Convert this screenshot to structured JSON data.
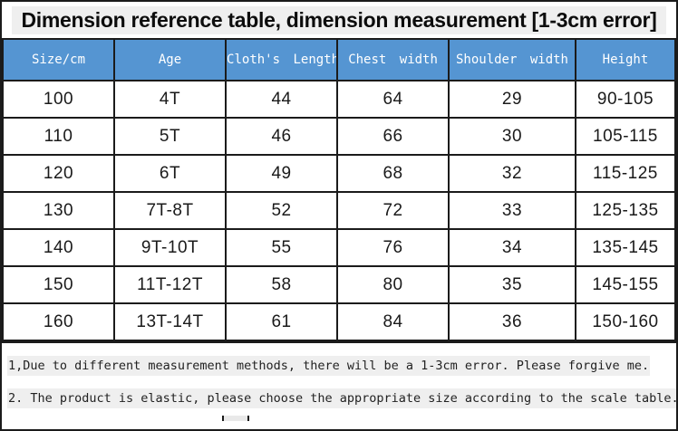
{
  "title": "Dimension reference table, dimension measurement [1-3cm error]",
  "table": {
    "columns": [
      "Size/cm",
      "Age",
      "Cloth's Length",
      "Chest width",
      "Shoulder width",
      "Height"
    ],
    "rows": [
      [
        "100",
        "4T",
        "44",
        "64",
        "29",
        "90-105"
      ],
      [
        "110",
        "5T",
        "46",
        "66",
        "30",
        "105-115"
      ],
      [
        "120",
        "6T",
        "49",
        "68",
        "32",
        "115-125"
      ],
      [
        "130",
        "7T-8T",
        "52",
        "72",
        "33",
        "125-135"
      ],
      [
        "140",
        "9T-10T",
        "55",
        "76",
        "34",
        "135-145"
      ],
      [
        "150",
        "11T-12T",
        "58",
        "80",
        "35",
        "145-155"
      ],
      [
        "160",
        "13T-14T",
        "61",
        "84",
        "36",
        "150-160"
      ]
    ]
  },
  "notes": [
    "1,Due to different measurement methods, there will be a 1-3cm error. Please forgive me.",
    "2. The product is elastic, please choose the appropriate size according to the scale table."
  ],
  "colors": {
    "header_bg": "#5595d2",
    "header_text": "#ffffff",
    "border": "#1b1b1b",
    "note_highlight": "#efefef"
  }
}
